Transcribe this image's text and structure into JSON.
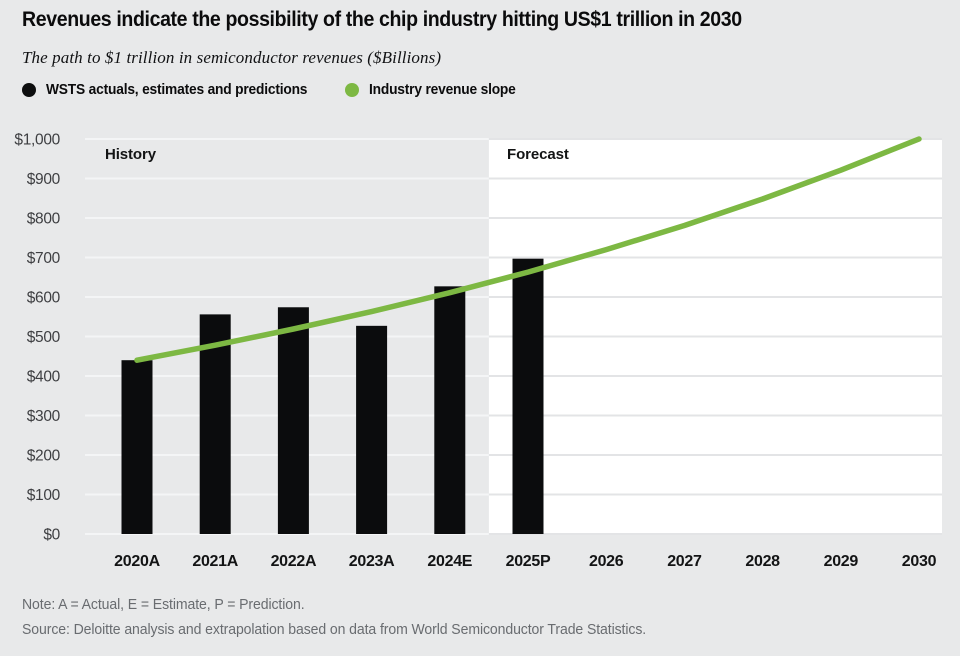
{
  "title": "Revenues indicate the possibility of the chip industry hitting US$1 trillion in 2030",
  "subtitle": "The path to $1 trillion in semiconductor revenues ($Billions)",
  "legend": [
    {
      "label": "WSTS actuals, estimates and predictions",
      "marker": "circle-icon",
      "color": "#0d0e0f"
    },
    {
      "label": "Industry revenue slope",
      "marker": "circle-icon",
      "color": "#7db843"
    }
  ],
  "chart_data": {
    "type": "bar",
    "categories": [
      "2020A",
      "2021A",
      "2022A",
      "2023A",
      "2024E",
      "2025P",
      "2026",
      "2027",
      "2028",
      "2029",
      "2030"
    ],
    "series": [
      {
        "name": "WSTS actuals, estimates and predictions",
        "type": "bar",
        "color": "#0b0c0d",
        "values": [
          440,
          556,
          574,
          527,
          627,
          697,
          null,
          null,
          null,
          null,
          null
        ]
      },
      {
        "name": "Industry revenue slope",
        "type": "line",
        "color": "#7db843",
        "values": [
          440,
          478,
          519,
          563,
          611,
          663,
          720,
          781,
          848,
          921,
          1000
        ]
      }
    ],
    "regions": [
      {
        "label": "History",
        "from": "2020A",
        "to": "2024E",
        "background": "#e8e9ea"
      },
      {
        "label": "Forecast",
        "from": "2025P",
        "to": "2030",
        "background": "#ffffff"
      }
    ],
    "y_ticks": [
      "$0",
      "$100",
      "$200",
      "$300",
      "$400",
      "$500",
      "$600",
      "$700",
      "$800",
      "$900",
      "$1,000"
    ],
    "ylim": [
      0,
      1000
    ],
    "y_step": 100,
    "grid": true,
    "legend_position": "top-left",
    "xlabel": "",
    "ylabel": ""
  },
  "note": "Note: A = Actual, E = Estimate, P = Prediction.",
  "source": "Source: Deloitte analysis and extrapolation based on data from World Semiconductor Trade Statistics.",
  "colors": {
    "page_background": "#e8e9ea",
    "forecast_background": "#ffffff",
    "grid_on_gray": "#f4f5f6",
    "grid_on_white": "#e3e4e6",
    "bar": "#0b0c0d",
    "line": "#7db843",
    "y_tick_text": "#3e3f42",
    "x_tick_text": "#131415",
    "footer_text": "#696c70"
  }
}
